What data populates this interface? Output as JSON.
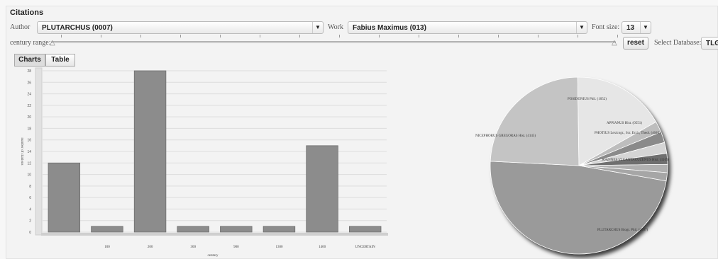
{
  "panel_title": "Citations",
  "author": {
    "label": "Author",
    "value": "PLUTARCHUS (0007)"
  },
  "work": {
    "label": "Work",
    "value": "Fabius Maximus (013)"
  },
  "font_size": {
    "label": "Font size:",
    "value": "13"
  },
  "century_range": {
    "label": "century range:"
  },
  "reset_label": "reset",
  "database": {
    "label": "Select Database:",
    "value": "TLG"
  },
  "tabs": [
    {
      "label": "Charts",
      "active": true
    },
    {
      "label": "Table",
      "active": false
    }
  ],
  "colors": {
    "bar": "#8c8c8c",
    "grid": "#dddddd"
  },
  "chart_data": [
    {
      "type": "bar",
      "categories": [
        "",
        "100",
        "200",
        "300",
        "900",
        "1300",
        "1400",
        "UNCERTAIN"
      ],
      "values": [
        12,
        1,
        28,
        1,
        1,
        1,
        15,
        1
      ],
      "title": "",
      "xlabel": "century",
      "ylabel": "number of citations",
      "ylim": [
        0,
        28
      ],
      "yticks": [
        0,
        2,
        4,
        6,
        8,
        10,
        12,
        14,
        16,
        18,
        20,
        22,
        24,
        26,
        28
      ],
      "grid": true
    },
    {
      "type": "pie",
      "slices": [
        {
          "label": "PLUTARCHUS Biogr. Phil. (0007)",
          "value": 48,
          "color": "#9a9a9a"
        },
        {
          "label": "NICEPHORUS GREGORAS Hist. (4145)",
          "value": 24,
          "color": "#c4c4c4"
        },
        {
          "label": "POSIDONIUS Phil. (1052)",
          "value": 17,
          "color": "#e6e6e6"
        },
        {
          "label": "APPIANUS Hist. (0551)",
          "value": 2,
          "color": "#bdbdbd"
        },
        {
          "label": "",
          "value": 2,
          "color": "#8a8a8a"
        },
        {
          "label": "PHOTIUS Lexicogr., Scr. Eccl., Theol. (4040)",
          "value": 2,
          "color": "#d5d5d5"
        },
        {
          "label": "",
          "value": 2,
          "color": "#6f6f6f"
        },
        {
          "label": "",
          "value": 1.5,
          "color": "#b0b0b0"
        },
        {
          "label": "JOANNES VI CANTACUZENUS Hist. (3169)",
          "value": 1.5,
          "color": "#a6a6a6"
        }
      ]
    }
  ]
}
